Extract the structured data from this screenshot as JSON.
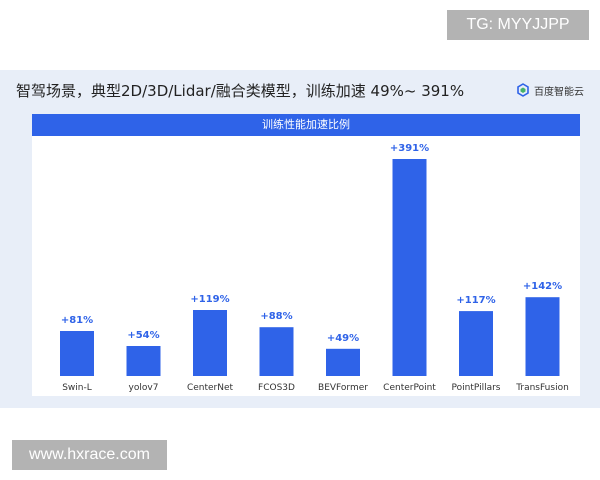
{
  "overlay": {
    "tg_label": "TG: MYYJJPP",
    "watermark_url": "www.hxrace.com"
  },
  "slide": {
    "title": "智驾场景，典型2D/3D/Lidar/融合类模型，训练加速 49%~ 391%",
    "brand_name": "百度智能云",
    "brand_icon": "baidu-cloud-logo"
  },
  "chart_data": {
    "type": "bar",
    "title": "训练性能加速比例",
    "categories": [
      "Swin-L",
      "yolov7",
      "CenterNet",
      "FCOS3D",
      "BEVFormer",
      "CenterPoint",
      "PointPillars",
      "TransFusion"
    ],
    "values": [
      81,
      54,
      119,
      88,
      49,
      391,
      117,
      142
    ],
    "value_labels": [
      "+81%",
      "+54%",
      "+119%",
      "+88%",
      "+49%",
      "+391%",
      "+117%",
      "+142%"
    ],
    "unit": "%",
    "ylim": [
      0,
      400
    ],
    "grid": false,
    "legend": "none",
    "bar_color": "#2f63e8",
    "label_color": "#2f63e8"
  },
  "colors": {
    "accent": "#2f63e8",
    "slide_bg": "#e8eef8"
  }
}
